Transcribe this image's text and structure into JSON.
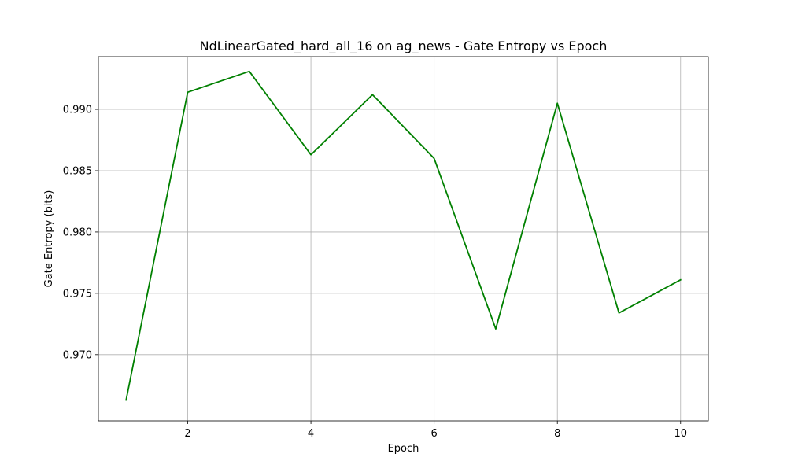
{
  "chart_data": {
    "type": "line",
    "title": "NdLinearGated_hard_all_16 on ag_news - Gate Entropy vs Epoch",
    "xlabel": "Epoch",
    "ylabel": "Gate Entropy (bits)",
    "xlim": [
      0.55,
      10.45
    ],
    "ylim": [
      0.9646,
      0.9943
    ],
    "xticks": [
      2,
      4,
      6,
      8,
      10
    ],
    "xtick_labels": [
      "2",
      "4",
      "6",
      "8",
      "10"
    ],
    "yticks": [
      0.97,
      0.975,
      0.98,
      0.985,
      0.99
    ],
    "ytick_labels": [
      "0.970",
      "0.975",
      "0.980",
      "0.985",
      "0.990"
    ],
    "grid": true,
    "series": [
      {
        "color": "#008000",
        "x": [
          1,
          2,
          3,
          4,
          5,
          6,
          7,
          8,
          9,
          10
        ],
        "y": [
          0.9663,
          0.9914,
          0.9931,
          0.9863,
          0.9912,
          0.986,
          0.9721,
          0.9905,
          0.9734,
          0.9761
        ]
      }
    ]
  }
}
